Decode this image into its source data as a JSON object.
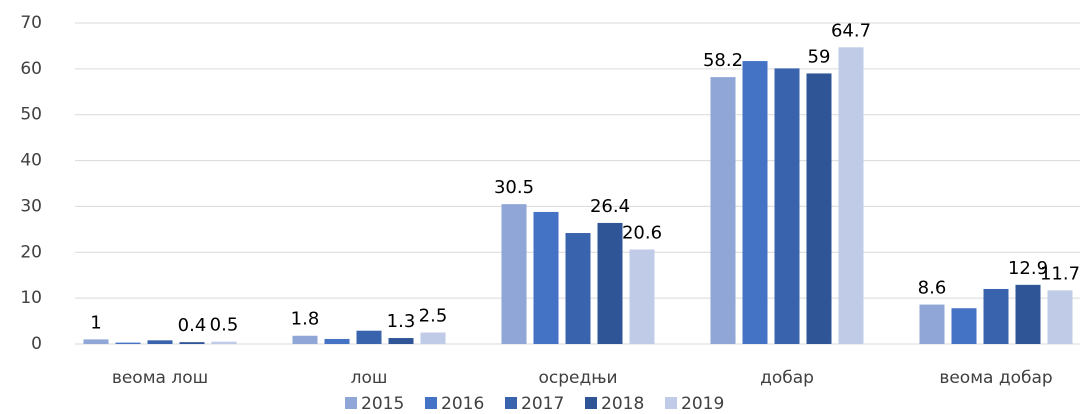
{
  "chart_data": {
    "type": "bar",
    "categories": [
      "веома лош",
      "лош",
      "осредњи",
      "добар",
      "веома добар"
    ],
    "series": [
      {
        "name": "2015",
        "color": "#8fa6d6",
        "values": [
          1,
          1.8,
          30.5,
          58.2,
          8.6
        ],
        "show_labels": true
      },
      {
        "name": "2016",
        "color": "#4472c4",
        "values": [
          0.3,
          1.1,
          28.8,
          61.7,
          7.8
        ],
        "show_labels": false
      },
      {
        "name": "2017",
        "color": "#3a63ad",
        "values": [
          0.8,
          2.9,
          24.2,
          60.1,
          12.0
        ],
        "show_labels": false
      },
      {
        "name": "2018",
        "color": "#2f5597",
        "values": [
          0.4,
          1.3,
          26.4,
          59,
          12.9
        ],
        "show_labels": true
      },
      {
        "name": "2019",
        "color": "#c0cbe7",
        "values": [
          0.5,
          2.5,
          20.6,
          64.7,
          11.7
        ],
        "show_labels": true
      }
    ],
    "ylim": [
      0,
      70
    ],
    "yticks": [
      0,
      10,
      20,
      30,
      40,
      50,
      60,
      70
    ],
    "grid": true,
    "legend": "bottom"
  }
}
